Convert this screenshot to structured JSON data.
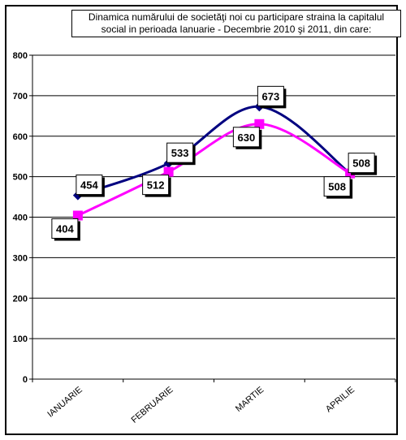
{
  "chart_data": {
    "type": "line",
    "title": "Dinamica numărului de societăţi noi cu participare straina la capitalul social in perioada Ianuarie - Decembrie 2010 şi 2011, din care:",
    "title_lines": [
      "Dinamica numărului de societăţi noi cu participare straina la capitalul",
      "social in perioada Ianuarie - Decembrie 2010 şi 2011, din care:"
    ],
    "categories": [
      "IANUARIE",
      "FEBRUARIE",
      "MARTIE",
      "APRILIE"
    ],
    "ylim": [
      0,
      800
    ],
    "yticks": [
      "0",
      "100",
      "200",
      "300",
      "400",
      "500",
      "600",
      "700",
      "800"
    ],
    "grid": true,
    "series": [
      {
        "color": "#000080",
        "marker": "diamond",
        "values": [
          454,
          533,
          673,
          508
        ],
        "labels": [
          "454",
          "533",
          "673",
          "508"
        ]
      },
      {
        "color": "#FF00FF",
        "marker": "square",
        "values": [
          404,
          512,
          630,
          508
        ],
        "labels": [
          "404",
          "512",
          "630",
          "508"
        ]
      }
    ]
  }
}
